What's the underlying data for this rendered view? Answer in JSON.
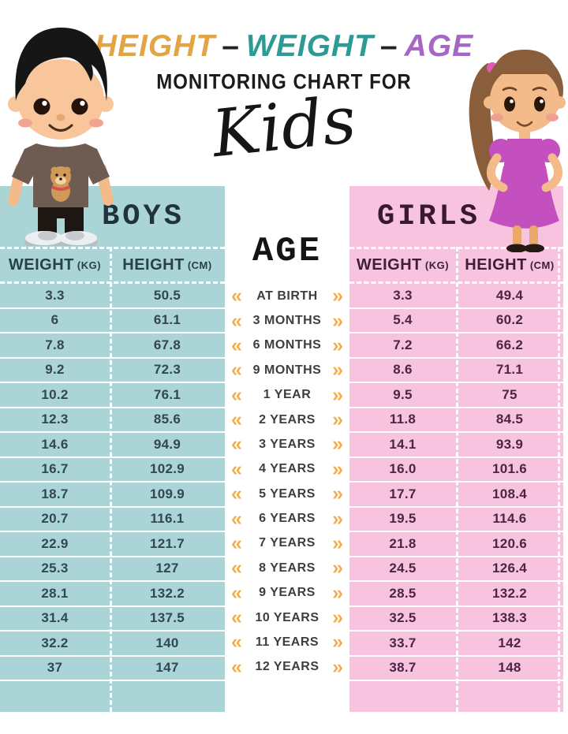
{
  "title": {
    "word1": "HEIGHT",
    "sep1": "–",
    "word2": "WEIGHT",
    "sep2": "–",
    "word3": "AGE",
    "subtitle": "MONITORING CHART FOR",
    "script_word": "Kids"
  },
  "boys": {
    "title": "BOYS",
    "weight_label": "WEIGHT",
    "weight_unit": "(KG)",
    "height_label": "HEIGHT",
    "height_unit": "(CM)",
    "weights": [
      "3.3",
      "6",
      "7.8",
      "9.2",
      "10.2",
      "12.3",
      "14.6",
      "16.7",
      "18.7",
      "20.7",
      "22.9",
      "25.3",
      "28.1",
      "31.4",
      "32.2",
      "37"
    ],
    "heights": [
      "50.5",
      "61.1",
      "67.8",
      "72.3",
      "76.1",
      "85.6",
      "94.9",
      "102.9",
      "109.9",
      "116.1",
      "121.7",
      "127",
      "132.2",
      "137.5",
      "140",
      "147"
    ]
  },
  "girls": {
    "title": "GIRLS",
    "weight_label": "WEIGHT",
    "weight_unit": "(KG)",
    "height_label": "HEIGHT",
    "height_unit": "(CM)",
    "weights": [
      "3.3",
      "5.4",
      "7.2",
      "8.6",
      "9.5",
      "11.8",
      "14.1",
      "16.0",
      "17.7",
      "19.5",
      "21.8",
      "24.5",
      "28.5",
      "32.5",
      "33.7",
      "38.7"
    ],
    "heights": [
      "49.4",
      "60.2",
      "66.2",
      "71.1",
      "75",
      "84.5",
      "93.9",
      "101.6",
      "108.4",
      "114.6",
      "120.6",
      "126.4",
      "132.2",
      "138.3",
      "142",
      "148"
    ]
  },
  "age": {
    "title": "AGE",
    "labels": [
      "AT BIRTH",
      "3 MONTHS",
      "6 MONTHS",
      "9 MONTHS",
      "1 YEAR",
      "2 YEARS",
      "3 YEARS",
      "4 YEARS",
      "5 YEARS",
      "6 YEARS",
      "7 YEARS",
      "8 YEARS",
      "9 YEARS",
      "10 YEARS",
      "11 YEARS",
      "12 YEARS"
    ]
  },
  "icons": {
    "chevron_left": "«",
    "chevron_right": "»",
    "boy_illustration": "boy-cartoon",
    "girl_illustration": "girl-cartoon"
  },
  "colors": {
    "boys_bg": "#aad4d6",
    "girls_bg": "#f7c3de",
    "chevron": "#f3ae4b",
    "title_height": "#e2a545",
    "title_weight": "#2d9b94",
    "title_age": "#a566c6",
    "boys_text": "#324750",
    "girls_text": "#4d2543"
  },
  "chart_data": {
    "type": "table",
    "title": "HEIGHT – WEIGHT – AGE MONITORING CHART FOR Kids",
    "categories": [
      "AT BIRTH",
      "3 MONTHS",
      "6 MONTHS",
      "9 MONTHS",
      "1 YEAR",
      "2 YEARS",
      "3 YEARS",
      "4 YEARS",
      "5 YEARS",
      "6 YEARS",
      "7 YEARS",
      "8 YEARS",
      "9 YEARS",
      "10 YEARS",
      "11 YEARS",
      "12 YEARS"
    ],
    "series": [
      {
        "name": "Boys Weight (kg)",
        "values": [
          3.3,
          6,
          7.8,
          9.2,
          10.2,
          12.3,
          14.6,
          16.7,
          18.7,
          20.7,
          22.9,
          25.3,
          28.1,
          31.4,
          32.2,
          37
        ]
      },
      {
        "name": "Boys Height (cm)",
        "values": [
          50.5,
          61.1,
          67.8,
          72.3,
          76.1,
          85.6,
          94.9,
          102.9,
          109.9,
          116.1,
          121.7,
          127,
          132.2,
          137.5,
          140,
          147
        ]
      },
      {
        "name": "Girls Weight (kg)",
        "values": [
          3.3,
          5.4,
          7.2,
          8.6,
          9.5,
          11.8,
          14.1,
          16.0,
          17.7,
          19.5,
          21.8,
          24.5,
          28.5,
          32.5,
          33.7,
          38.7
        ]
      },
      {
        "name": "Girls Height (cm)",
        "values": [
          49.4,
          60.2,
          66.2,
          71.1,
          75,
          84.5,
          93.9,
          101.6,
          108.4,
          114.6,
          120.6,
          126.4,
          132.2,
          138.3,
          142,
          148
        ]
      }
    ]
  }
}
